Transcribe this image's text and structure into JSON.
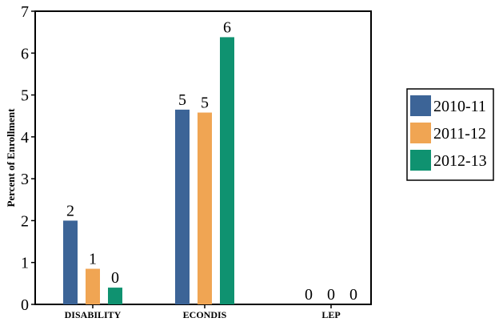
{
  "chart_data": {
    "type": "bar",
    "categories": [
      "DISABILITY",
      "ECONDIS",
      "LEP"
    ],
    "series": [
      {
        "name": "2010-11",
        "color": "#3c6497",
        "values": [
          2.0,
          4.65,
          0
        ],
        "labels": [
          "2",
          "5",
          "0"
        ]
      },
      {
        "name": "2011-12",
        "color": "#f0a553",
        "values": [
          0.85,
          4.58,
          0
        ],
        "labels": [
          "1",
          "5",
          "0"
        ]
      },
      {
        "name": "2012-13",
        "color": "#0f9270",
        "values": [
          0.4,
          6.38,
          0
        ],
        "labels": [
          "0",
          "6",
          "0"
        ]
      }
    ],
    "ylabel": "Percent of Enrollment",
    "ylim": [
      0,
      7
    ],
    "yticks": [
      "0",
      "1",
      "2",
      "3",
      "4",
      "5",
      "6",
      "7"
    ],
    "legend_position": "right",
    "grid": false
  }
}
